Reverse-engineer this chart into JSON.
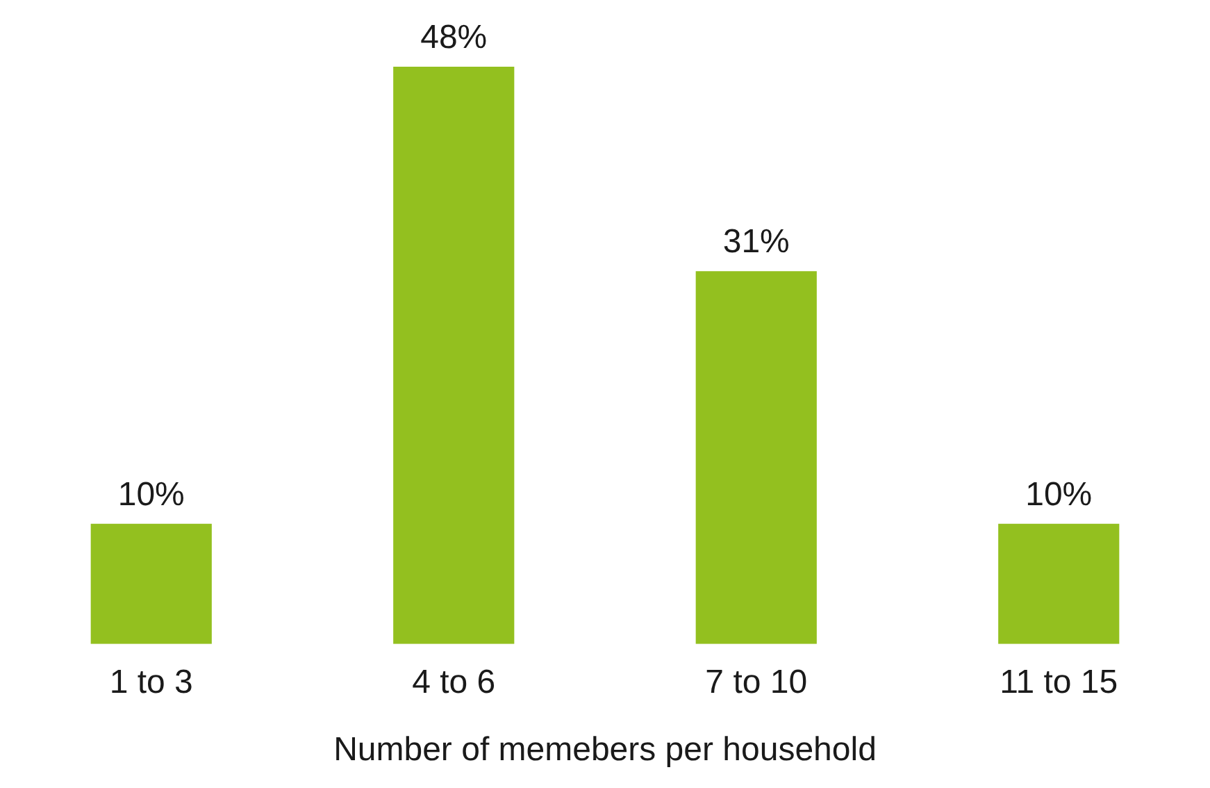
{
  "chart_data": {
    "type": "bar",
    "xlabel": "Number of memebers per household",
    "categories": [
      "1 to 3",
      "4 to 6",
      "7 to 10",
      "11 to 15"
    ],
    "values": [
      10,
      48,
      31,
      10
    ],
    "value_labels": [
      "10%",
      "48%",
      "31%",
      "10%"
    ],
    "color": "#93c01f",
    "grid": false,
    "legend": false
  }
}
